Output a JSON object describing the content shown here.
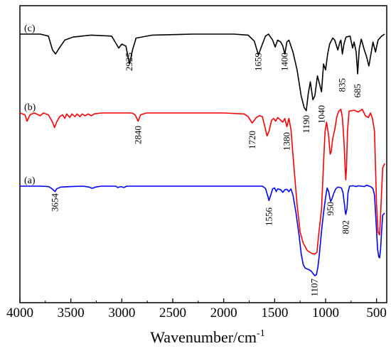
{
  "chart_data": {
    "type": "line",
    "xlabel": "Wavenumber/cm",
    "xlabel_superscript": "-1",
    "xlim": [
      4000,
      400
    ],
    "x_reversed": true,
    "x_ticks": [
      4000,
      3500,
      3000,
      2500,
      2000,
      1500,
      1000,
      500
    ],
    "y_ticks_shown": false,
    "grid": false,
    "series": [
      {
        "name": "(c)",
        "color": "#000000",
        "points": [
          [
            4000,
            0
          ],
          [
            3800,
            0
          ],
          [
            3720,
            -0.2
          ],
          [
            3680,
            -1.6
          ],
          [
            3650,
            -2.0
          ],
          [
            3620,
            -1.5
          ],
          [
            3560,
            -0.6
          ],
          [
            3480,
            -0.3
          ],
          [
            3300,
            -0.1
          ],
          [
            3100,
            -0.2
          ],
          [
            3030,
            -1.4
          ],
          [
            3000,
            -1.0
          ],
          [
            2960,
            -1.2
          ],
          [
            2925,
            -3.0
          ],
          [
            2895,
            -1.6
          ],
          [
            2860,
            -0.4
          ],
          [
            2700,
            -0.1
          ],
          [
            2300,
            0
          ],
          [
            1900,
            0
          ],
          [
            1760,
            -0.1
          ],
          [
            1700,
            -0.7
          ],
          [
            1659,
            -2.1
          ],
          [
            1620,
            -1.0
          ],
          [
            1590,
            -0.2
          ],
          [
            1560,
            0
          ],
          [
            1520,
            -0.6
          ],
          [
            1495,
            -1.3
          ],
          [
            1470,
            -0.6
          ],
          [
            1440,
            -0.8
          ],
          [
            1420,
            -1.2
          ],
          [
            1400,
            -2.0
          ],
          [
            1380,
            -0.8
          ],
          [
            1360,
            -0.6
          ],
          [
            1320,
            -1.8
          ],
          [
            1280,
            -3.6
          ],
          [
            1240,
            -6.2
          ],
          [
            1210,
            -7.4
          ],
          [
            1190,
            -7.7
          ],
          [
            1170,
            -6.0
          ],
          [
            1150,
            -4.8
          ],
          [
            1125,
            -6.6
          ],
          [
            1105,
            -6.2
          ],
          [
            1080,
            -4.2
          ],
          [
            1060,
            -5.0
          ],
          [
            1040,
            -5.8
          ],
          [
            1020,
            -3.0
          ],
          [
            1000,
            -3.6
          ],
          [
            980,
            -2.0
          ],
          [
            960,
            -1.0
          ],
          [
            930,
            -0.4
          ],
          [
            910,
            -0.6
          ],
          [
            880,
            -1.6
          ],
          [
            860,
            -0.8
          ],
          [
            850,
            -0.6
          ],
          [
            835,
            -2.0
          ],
          [
            820,
            -1.0
          ],
          [
            800,
            -0.3
          ],
          [
            760,
            -0.2
          ],
          [
            735,
            -1.4
          ],
          [
            720,
            -0.8
          ],
          [
            700,
            -1.8
          ],
          [
            685,
            -4.0
          ],
          [
            670,
            -1.5
          ],
          [
            650,
            -0.5
          ],
          [
            620,
            -1.6
          ],
          [
            600,
            -2.2
          ],
          [
            575,
            -3.2
          ],
          [
            555,
            -2.0
          ],
          [
            535,
            -0.8
          ],
          [
            510,
            -1.8
          ],
          [
            485,
            -0.6
          ],
          [
            450,
            -0.2
          ],
          [
            420,
            0
          ]
        ]
      },
      {
        "name": "(b)",
        "color": "#ff0000",
        "points": [
          [
            4000,
            0
          ],
          [
            3950,
            -0.2
          ],
          [
            3930,
            -0.9
          ],
          [
            3900,
            -0.2
          ],
          [
            3860,
            0
          ],
          [
            3800,
            -0.3
          ],
          [
            3770,
            0
          ],
          [
            3720,
            -0.2
          ],
          [
            3680,
            -1.0
          ],
          [
            3660,
            -1.6
          ],
          [
            3640,
            -1.0
          ],
          [
            3610,
            -0.4
          ],
          [
            3580,
            -0.2
          ],
          [
            3560,
            -0.6
          ],
          [
            3540,
            -0.1
          ],
          [
            3510,
            -0.5
          ],
          [
            3490,
            -0.1
          ],
          [
            3460,
            -0.4
          ],
          [
            3440,
            -0.1
          ],
          [
            3410,
            -0.4
          ],
          [
            3390,
            -0.1
          ],
          [
            3360,
            -0.3
          ],
          [
            3330,
            -0.1
          ],
          [
            3300,
            -0.3
          ],
          [
            3270,
            -0.1
          ],
          [
            3200,
            0
          ],
          [
            2900,
            0
          ],
          [
            2870,
            -0.2
          ],
          [
            2840,
            -0.9
          ],
          [
            2815,
            -0.2
          ],
          [
            2760,
            0
          ],
          [
            2000,
            0
          ],
          [
            1800,
            -0.1
          ],
          [
            1760,
            -0.4
          ],
          [
            1720,
            -1.1
          ],
          [
            1680,
            -0.5
          ],
          [
            1650,
            -0.3
          ],
          [
            1620,
            -0.4
          ],
          [
            1600,
            -1.3
          ],
          [
            1575,
            -2.5
          ],
          [
            1555,
            -2.0
          ],
          [
            1530,
            -0.8
          ],
          [
            1510,
            -0.6
          ],
          [
            1490,
            -0.9
          ],
          [
            1470,
            -0.5
          ],
          [
            1450,
            -0.7
          ],
          [
            1420,
            -1.0
          ],
          [
            1400,
            -0.6
          ],
          [
            1380,
            -1.5
          ],
          [
            1360,
            -0.6
          ],
          [
            1340,
            -1.8
          ],
          [
            1310,
            -6.0
          ],
          [
            1280,
            -10.0
          ],
          [
            1250,
            -13.0
          ],
          [
            1220,
            -14.2
          ],
          [
            1180,
            -15.0
          ],
          [
            1140,
            -15.3
          ],
          [
            1107,
            -15.4
          ],
          [
            1085,
            -15.2
          ],
          [
            1065,
            -13.0
          ],
          [
            1040,
            -10.5
          ],
          [
            1020,
            -5.5
          ],
          [
            1005,
            -2.0
          ],
          [
            990,
            -1.0
          ],
          [
            970,
            -2.5
          ],
          [
            955,
            -4.5
          ],
          [
            945,
            -4.2
          ],
          [
            930,
            -2.8
          ],
          [
            910,
            -1.8
          ],
          [
            890,
            -0.4
          ],
          [
            870,
            0.2
          ],
          [
            850,
            0.4
          ],
          [
            835,
            -0.5
          ],
          [
            820,
            -3.0
          ],
          [
            808,
            -6.0
          ],
          [
            802,
            -7.3
          ],
          [
            795,
            -6.0
          ],
          [
            785,
            -2.0
          ],
          [
            770,
            0.2
          ],
          [
            720,
            0.3
          ],
          [
            680,
            0.1
          ],
          [
            640,
            0.4
          ],
          [
            610,
            -0.3
          ],
          [
            580,
            -0.5
          ],
          [
            560,
            0
          ],
          [
            540,
            -0.6
          ],
          [
            520,
            -2.0
          ],
          [
            500,
            -10.0
          ],
          [
            485,
            -13.0
          ],
          [
            470,
            -13.3
          ],
          [
            460,
            -11.0
          ],
          [
            440,
            -6.0
          ],
          [
            420,
            -5.5
          ]
        ]
      },
      {
        "name": "(a)",
        "color": "#0000ff",
        "points": [
          [
            4000,
            0
          ],
          [
            3800,
            0
          ],
          [
            3720,
            -0.1
          ],
          [
            3690,
            -0.5
          ],
          [
            3670,
            -0.9
          ],
          [
            3654,
            -1.2
          ],
          [
            3640,
            -0.6
          ],
          [
            3600,
            -0.2
          ],
          [
            3500,
            -0.1
          ],
          [
            3380,
            0
          ],
          [
            3320,
            -0.2
          ],
          [
            3290,
            -0.5
          ],
          [
            3260,
            -0.2
          ],
          [
            3200,
            0
          ],
          [
            3060,
            0
          ],
          [
            3040,
            -0.3
          ],
          [
            3010,
            -0.1
          ],
          [
            2980,
            -0.3
          ],
          [
            2950,
            0
          ],
          [
            2000,
            0
          ],
          [
            1700,
            0
          ],
          [
            1620,
            0
          ],
          [
            1590,
            -0.5
          ],
          [
            1570,
            -2.0
          ],
          [
            1556,
            -3.2
          ],
          [
            1540,
            -2.1
          ],
          [
            1520,
            -0.6
          ],
          [
            1500,
            -0.4
          ],
          [
            1485,
            -1.2
          ],
          [
            1470,
            -0.6
          ],
          [
            1440,
            -0.8
          ],
          [
            1420,
            -1.4
          ],
          [
            1400,
            -0.8
          ],
          [
            1380,
            -0.7
          ],
          [
            1360,
            -1.2
          ],
          [
            1340,
            -0.6
          ],
          [
            1320,
            -2.0
          ],
          [
            1290,
            -6.0
          ],
          [
            1260,
            -11.0
          ],
          [
            1240,
            -15.0
          ],
          [
            1220,
            -17.5
          ],
          [
            1200,
            -18.3
          ],
          [
            1180,
            -18.5
          ],
          [
            1160,
            -18.7
          ],
          [
            1140,
            -19.0
          ],
          [
            1120,
            -19.6
          ],
          [
            1107,
            -20.0
          ],
          [
            1090,
            -19.8
          ],
          [
            1075,
            -18.0
          ],
          [
            1060,
            -15.0
          ],
          [
            1040,
            -10.0
          ],
          [
            1020,
            -6.0
          ],
          [
            1000,
            -2.5
          ],
          [
            985,
            -0.4
          ],
          [
            970,
            -1.2
          ],
          [
            955,
            -3.0
          ],
          [
            950,
            -3.4
          ],
          [
            940,
            -3.0
          ],
          [
            920,
            -1.6
          ],
          [
            900,
            -0.6
          ],
          [
            880,
            -0.2
          ],
          [
            860,
            -0.3
          ],
          [
            845,
            -0.4
          ],
          [
            830,
            -1.4
          ],
          [
            815,
            -4.0
          ],
          [
            805,
            -6.0
          ],
          [
            802,
            -6.3
          ],
          [
            790,
            -5.0
          ],
          [
            780,
            -1.5
          ],
          [
            765,
            0
          ],
          [
            730,
            0.1
          ],
          [
            700,
            -0.1
          ],
          [
            680,
            0.1
          ],
          [
            650,
            0
          ],
          [
            620,
            -0.1
          ],
          [
            600,
            0.2
          ],
          [
            570,
            0
          ],
          [
            550,
            -0.2
          ],
          [
            535,
            -0.6
          ],
          [
            520,
            -2.0
          ],
          [
            505,
            -8.0
          ],
          [
            490,
            -14.0
          ],
          [
            478,
            -15.8
          ],
          [
            470,
            -16.0
          ],
          [
            460,
            -14.0
          ],
          [
            450,
            -10.0
          ],
          [
            440,
            -6.5
          ],
          [
            420,
            -6.0
          ]
        ]
      }
    ],
    "annotations": [
      {
        "text": "2925",
        "series": "(c)"
      },
      {
        "text": "1659",
        "series": "(c)"
      },
      {
        "text": "1400",
        "series": "(c)"
      },
      {
        "text": "1190",
        "series": "(c)"
      },
      {
        "text": "1040",
        "series": "(c)"
      },
      {
        "text": "835",
        "series": "(c)"
      },
      {
        "text": "685",
        "series": "(c)"
      },
      {
        "text": "2840",
        "series": "(b)"
      },
      {
        "text": "1720",
        "series": "(b)"
      },
      {
        "text": "1380",
        "series": "(b)"
      },
      {
        "text": "3654",
        "series": "(a)"
      },
      {
        "text": "1556",
        "series": "(a)"
      },
      {
        "text": "950",
        "series": "(a)"
      },
      {
        "text": "802",
        "series": "(a)"
      },
      {
        "text": "1107",
        "series": "(a)"
      }
    ]
  }
}
